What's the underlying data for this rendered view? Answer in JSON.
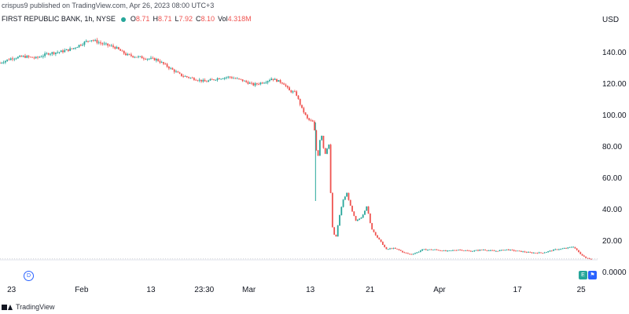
{
  "header": {
    "note": "crispus9 published on TradingView.com, Apr 26, 2023 08:00 UTC+3"
  },
  "legend": {
    "symbol": "FIRST REPUBLIC BANK, 1h, NYSE",
    "open_label": "O",
    "open": "8.71",
    "high_label": "H",
    "high": "8.71",
    "low_label": "L",
    "low": "7.92",
    "close_label": "C",
    "close": "8.10",
    "vol_label": "Vol",
    "vol": "4.318M"
  },
  "footer": {
    "brand": "TradingView"
  },
  "markers": {
    "dividend": "D",
    "earnings": "E"
  },
  "colors": {
    "up": "#26a69a",
    "down": "#ef5350",
    "axis_text": "#131722",
    "price_line": "#b2b5be"
  },
  "chart_data": {
    "type": "candlestick",
    "interval": "1h",
    "currency": "USD",
    "y_axis": {
      "label": "USD",
      "ticks": [
        0.0,
        20.0,
        40.0,
        60.0,
        80.0,
        100.0,
        120.0,
        140.0
      ],
      "tick_labels": [
        "0.0000",
        "20.00",
        "40.00",
        "60.00",
        "80.00",
        "100.00",
        "120.00",
        "140.00"
      ],
      "range": [
        0,
        162
      ]
    },
    "x_axis": {
      "tick_labels": [
        "23",
        "Feb",
        "13",
        "23:30",
        "Mar",
        "13",
        "21",
        "Apr",
        "17",
        "25"
      ]
    },
    "last_price": 8.1,
    "price_path": [
      {
        "t": 0,
        "p": 133
      },
      {
        "t": 2,
        "p": 136
      },
      {
        "t": 4,
        "p": 137
      },
      {
        "t": 6,
        "p": 136
      },
      {
        "t": 8,
        "p": 139
      },
      {
        "t": 10,
        "p": 140
      },
      {
        "t": 12,
        "p": 142
      },
      {
        "t": 14,
        "p": 146
      },
      {
        "t": 15,
        "p": 148
      },
      {
        "t": 17,
        "p": 145
      },
      {
        "t": 19,
        "p": 143
      },
      {
        "t": 21,
        "p": 138
      },
      {
        "t": 24,
        "p": 136
      },
      {
        "t": 26,
        "p": 135
      },
      {
        "t": 28,
        "p": 130
      },
      {
        "t": 30,
        "p": 125
      },
      {
        "t": 32,
        "p": 123
      },
      {
        "t": 34,
        "p": 121
      },
      {
        "t": 36,
        "p": 123
      },
      {
        "t": 38,
        "p": 124
      },
      {
        "t": 40,
        "p": 122
      },
      {
        "t": 42,
        "p": 119
      },
      {
        "t": 44,
        "p": 121
      },
      {
        "t": 45,
        "p": 123
      },
      {
        "t": 47,
        "p": 120
      },
      {
        "t": 48,
        "p": 115
      },
      {
        "t": 49,
        "p": 114
      },
      {
        "t": 50,
        "p": 104
      },
      {
        "t": 51,
        "p": 97
      },
      {
        "t": 52,
        "p": 95
      },
      {
        "t": 52.6,
        "p": 70
      },
      {
        "t": 53.2,
        "p": 90
      },
      {
        "t": 53.8,
        "p": 74
      },
      {
        "t": 54.5,
        "p": 82
      },
      {
        "t": 55,
        "p": 30
      },
      {
        "t": 55.6,
        "p": 20
      },
      {
        "t": 56.2,
        "p": 34
      },
      {
        "t": 56.8,
        "p": 45
      },
      {
        "t": 57.5,
        "p": 50
      },
      {
        "t": 58.2,
        "p": 40
      },
      {
        "t": 59,
        "p": 32
      },
      {
        "t": 60,
        "p": 35
      },
      {
        "t": 60.8,
        "p": 42
      },
      {
        "t": 61.5,
        "p": 28
      },
      {
        "t": 62.5,
        "p": 22
      },
      {
        "t": 63.5,
        "p": 17
      },
      {
        "t": 64,
        "p": 14
      },
      {
        "t": 65,
        "p": 15
      },
      {
        "t": 66,
        "p": 14
      },
      {
        "t": 67,
        "p": 12
      },
      {
        "t": 68,
        "p": 11
      },
      {
        "t": 69,
        "p": 12
      },
      {
        "t": 70,
        "p": 14
      },
      {
        "t": 72,
        "p": 14
      },
      {
        "t": 74,
        "p": 13
      },
      {
        "t": 76,
        "p": 14
      },
      {
        "t": 78,
        "p": 13
      },
      {
        "t": 80,
        "p": 14
      },
      {
        "t": 82,
        "p": 13
      },
      {
        "t": 84,
        "p": 14
      },
      {
        "t": 86,
        "p": 13
      },
      {
        "t": 88,
        "p": 12
      },
      {
        "t": 90,
        "p": 12
      },
      {
        "t": 92,
        "p": 14
      },
      {
        "t": 94,
        "p": 15
      },
      {
        "t": 95,
        "p": 16
      },
      {
        "t": 96,
        "p": 12
      },
      {
        "t": 97,
        "p": 9
      },
      {
        "t": 98,
        "p": 8.1
      }
    ]
  }
}
